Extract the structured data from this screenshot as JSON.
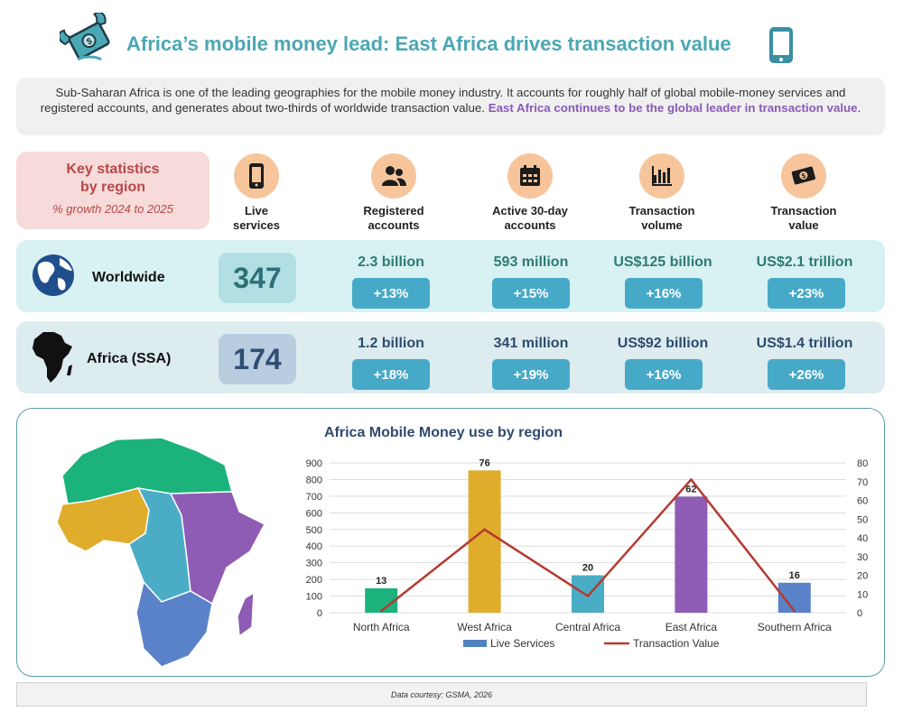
{
  "header": {
    "title": "Africa’s mobile money lead: East Africa drives transaction value",
    "left_icon": "money-wings-icon",
    "right_icon": "mobile-phone-icon"
  },
  "intro": {
    "text": "Sub-Saharan Africa is one of the leading geographies for the mobile money industry. It accounts for roughly half of global mobile-money services and registered accounts, and generates about two-thirds of worldwide transaction value. ",
    "highlight": "East Africa continues to be the global leader in transaction value",
    "end": "."
  },
  "key": {
    "title_line1": "Key statistics",
    "title_line2": "by region",
    "subtitle": "% growth 2024 to 2025"
  },
  "columns": [
    {
      "line1": "Live",
      "line2": "services",
      "icon": "phone-icon"
    },
    {
      "line1": "Registered",
      "line2": "accounts",
      "icon": "users-icon"
    },
    {
      "line1": "Active 30-day",
      "line2": "accounts",
      "icon": "calendar-icon"
    },
    {
      "line1": "Transaction",
      "line2": "volume",
      "icon": "bar-chart-icon"
    },
    {
      "line1": "Transaction",
      "line2": "value",
      "icon": "cash-icon"
    }
  ],
  "rows": [
    {
      "label": "Worldwide",
      "icon": "globe-icon",
      "live": "347",
      "values": [
        "2.3 billion",
        "593 million",
        "US$125 billion",
        "US$2.1 trillion"
      ],
      "growth": [
        "+13%",
        "+15%",
        "+16%",
        "+23%"
      ]
    },
    {
      "label": "Africa (SSA)",
      "icon": "africa-silhouette-icon",
      "live": "174",
      "values": [
        "1.2 billion",
        "341 million",
        "US$92 billion",
        "US$1.4 trillion"
      ],
      "growth": [
        "+18%",
        "+19%",
        "+16%",
        "+26%"
      ]
    }
  ],
  "map_icon": "africa-regions-map",
  "chart_data": {
    "type": "bar",
    "title": "Africa Mobile Money use by region",
    "categories": [
      "North Africa",
      "West Africa",
      "Central Africa",
      "East Africa",
      "Southern Africa"
    ],
    "series": [
      {
        "name": "Live Services",
        "type": "bar",
        "axis": "right",
        "values": [
          13,
          76,
          20,
          62,
          16
        ],
        "colors": [
          "#1bb37b",
          "#e0ac2b",
          "#4bacc6",
          "#8e5bb5",
          "#5a82c9"
        ]
      },
      {
        "name": "Transaction Value",
        "type": "line",
        "axis": "left",
        "values": [
          10,
          500,
          100,
          800,
          10
        ],
        "color": "#b33b30"
      }
    ],
    "data_labels": [
      "13",
      "76",
      "20",
      "62",
      "16"
    ],
    "y_left": {
      "min": 0,
      "max": 900,
      "step": 100
    },
    "y_right": {
      "min": 0,
      "max": 80,
      "step": 10
    },
    "grid": true,
    "legend_position": "bottom",
    "legend_swatch_color": "#4f81bd"
  },
  "footer": {
    "text": "Data courtesy: GSMA, 2026"
  }
}
